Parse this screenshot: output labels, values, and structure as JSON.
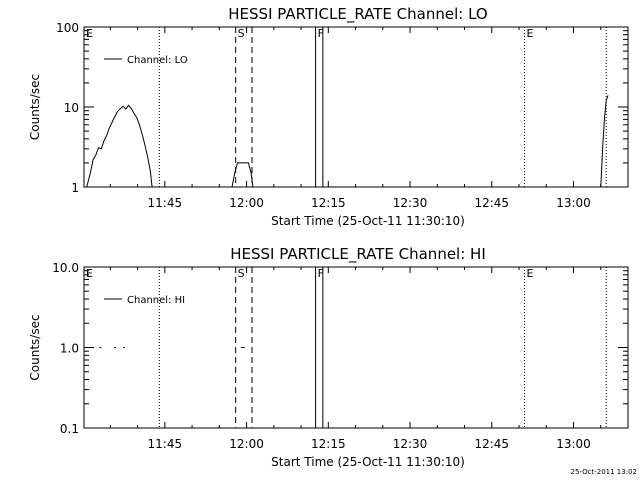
{
  "timestamp": "25-Oct-2011 13:02",
  "chart_data": [
    {
      "type": "line",
      "title": "HESSI PARTICLE_RATE Channel: LO",
      "xlabel": "Start Time (25-Oct-11 11:30:10)",
      "ylabel": "Counts/sec",
      "yscale": "log",
      "ylim": [
        1,
        100
      ],
      "xlim": [
        "11:30:10",
        "13:10:00"
      ],
      "x_ticks": [
        "11:45",
        "12:00",
        "12:15",
        "12:30",
        "12:45",
        "13:00"
      ],
      "y_ticks": [
        "1",
        "10",
        "100"
      ],
      "legend": {
        "position": "top-left",
        "entries": [
          "Channel: LO"
        ]
      },
      "markers": [
        {
          "label": "E",
          "time": "11:30:10",
          "style": "dotted"
        },
        {
          "label": "",
          "time": "11:44:00",
          "style": "dotted"
        },
        {
          "label": "S",
          "time": "11:58:00",
          "style": "dashed"
        },
        {
          "label": "",
          "time": "12:01:00",
          "style": "dashed"
        },
        {
          "label": "F",
          "time": "12:12:40",
          "style": "solid"
        },
        {
          "label": "",
          "time": "12:14:00",
          "style": "solid"
        },
        {
          "label": "E",
          "time": "12:51:00",
          "style": "dotted"
        },
        {
          "label": "",
          "time": "13:06:00",
          "style": "dotted"
        }
      ],
      "series": [
        {
          "name": "Channel: LO",
          "segments": [
            [
              [
                "11:30:40",
                1.0
              ],
              [
                "11:31:20",
                1.5
              ],
              [
                "11:31:50",
                2.2
              ],
              [
                "11:32:20",
                2.5
              ],
              [
                "11:32:50",
                3.1
              ],
              [
                "11:33:20",
                3.0
              ],
              [
                "11:33:50",
                3.8
              ],
              [
                "11:34:20",
                4.4
              ],
              [
                "11:34:50",
                5.5
              ],
              [
                "11:35:20",
                6.5
              ],
              [
                "11:35:50",
                7.6
              ],
              [
                "11:36:20",
                8.8
              ],
              [
                "11:36:50",
                9.5
              ],
              [
                "11:37:20",
                10.2
              ],
              [
                "11:37:50",
                9.4
              ],
              [
                "11:38:20",
                10.5
              ],
              [
                "11:38:50",
                9.6
              ],
              [
                "11:39:20",
                8.4
              ],
              [
                "11:39:50",
                7.4
              ],
              [
                "11:40:20",
                6.0
              ],
              [
                "11:40:50",
                4.6
              ],
              [
                "11:41:20",
                3.4
              ],
              [
                "11:41:50",
                2.4
              ],
              [
                "11:42:20",
                1.6
              ],
              [
                "11:42:40",
                1.0
              ]
            ],
            [
              [
                "11:57:20",
                1.0
              ],
              [
                "11:57:50",
                1.5
              ],
              [
                "11:58:20",
                2.0
              ],
              [
                "11:59:20",
                2.0
              ],
              [
                "12:00:20",
                2.0
              ],
              [
                "12:00:50",
                1.5
              ],
              [
                "12:01:10",
                1.0
              ]
            ],
            [
              [
                "13:05:00",
                1.0
              ],
              [
                "13:05:20",
                3.0
              ],
              [
                "13:05:40",
                7.0
              ],
              [
                "13:06:00",
                12.0
              ],
              [
                "13:06:20",
                14.0
              ]
            ]
          ]
        }
      ]
    },
    {
      "type": "line",
      "title": "HESSI PARTICLE_RATE Channel: HI",
      "xlabel": "Start Time (25-Oct-11 11:30:10)",
      "ylabel": "Counts/sec",
      "yscale": "log",
      "ylim": [
        0.1,
        10
      ],
      "xlim": [
        "11:30:10",
        "13:10:00"
      ],
      "x_ticks": [
        "11:45",
        "12:00",
        "12:15",
        "12:30",
        "12:45",
        "13:00"
      ],
      "y_ticks": [
        "0.1",
        "1.0",
        "10.0"
      ],
      "legend": {
        "position": "top-left",
        "entries": [
          "Channel: HI"
        ]
      },
      "markers": [
        {
          "label": "E",
          "time": "11:30:10",
          "style": "dotted"
        },
        {
          "label": "",
          "time": "11:44:00",
          "style": "dotted"
        },
        {
          "label": "S",
          "time": "11:58:00",
          "style": "dashed"
        },
        {
          "label": "",
          "time": "12:01:00",
          "style": "dashed"
        },
        {
          "label": "F",
          "time": "12:12:40",
          "style": "solid"
        },
        {
          "label": "",
          "time": "12:14:00",
          "style": "solid"
        },
        {
          "label": "E",
          "time": "12:51:00",
          "style": "dotted"
        },
        {
          "label": "",
          "time": "13:06:00",
          "style": "dotted"
        }
      ],
      "series": [
        {
          "name": "Channel: HI",
          "segments": [
            [
              [
                "11:33:00",
                1.0
              ],
              [
                "11:33:20",
                1.0
              ]
            ],
            [
              [
                "11:35:40",
                1.0
              ],
              [
                "11:36:00",
                1.0
              ]
            ],
            [
              [
                "11:37:20",
                1.0
              ],
              [
                "11:37:40",
                1.0
              ]
            ],
            [
              [
                "11:59:00",
                1.0
              ],
              [
                "11:59:40",
                1.0
              ]
            ]
          ]
        }
      ]
    }
  ]
}
